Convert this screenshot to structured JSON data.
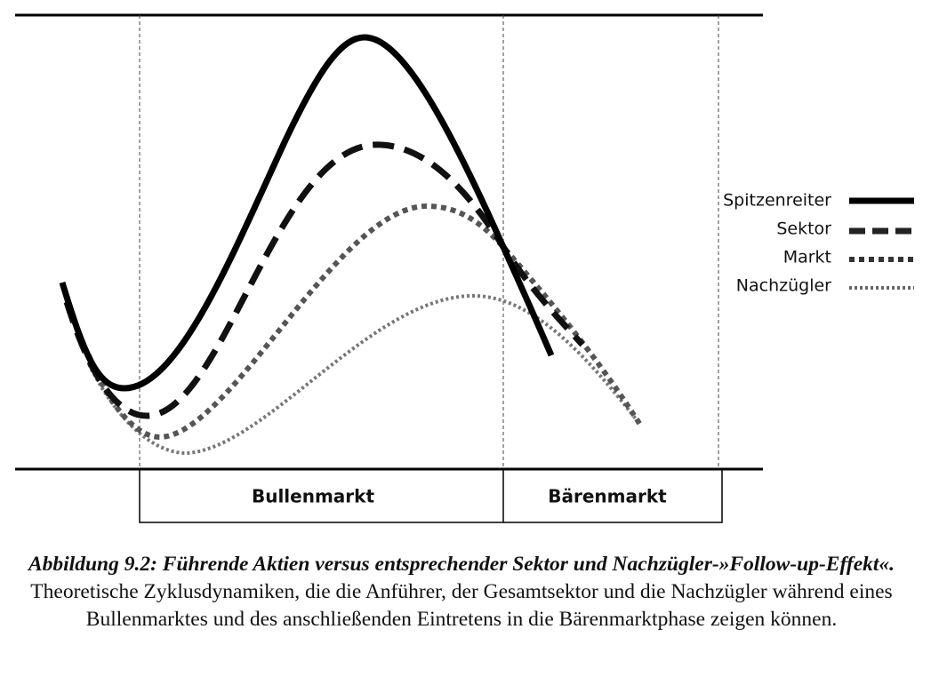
{
  "legend": [
    "Spitzenreiter",
    "Sektor",
    "Markt",
    "Nachzügler"
  ],
  "phases": [
    "Bullenmarkt",
    "Bärenmarkt"
  ],
  "caption": {
    "title": "Abbildung 9.2: Führende Aktien versus entsprechender Sektor und Nachzügler-»Follow-up-Effekt«.",
    "text": "Theoretische Zyklusdynamiken, die die Anführer, der Gesamtsektor und die Nachzügler während eines Bullenmarktes und des anschließenden Eintretens in die Bärenmarktphase zeigen können."
  }
}
